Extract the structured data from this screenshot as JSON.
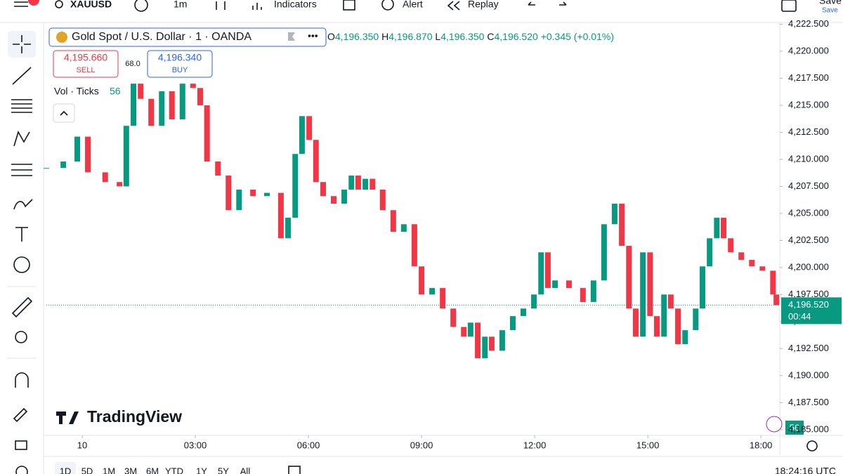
{
  "toolbar": {
    "symbol": "XAUUSD",
    "interval": "1m",
    "indicators": "Indicators",
    "alert": "Alert",
    "replay": "Replay",
    "save": "Save",
    "save_sub": "Save"
  },
  "legend": {
    "title": "Gold Spot / U.S. Dollar · 1 · OANDA",
    "ohlc": [
      "O",
      "4,196.350",
      "H",
      "4,196.870",
      "L",
      "4,196.350",
      "C",
      "4,196.520"
    ],
    "change": "+0.345 (+0.01%)"
  },
  "trade": {
    "sell_price": "4,195.660",
    "sell": "SELL",
    "spread": "68.0",
    "buy_price": "4,196.340",
    "buy": "BUY"
  },
  "volume_legend": {
    "label": "Vol · Ticks",
    "value": "56"
  },
  "watermark": "TradingView",
  "chart_data": {
    "type": "candlestick",
    "x": [
      -0.95,
      -0.5,
      -0.13,
      0.15,
      0.61,
      0.99,
      1.17,
      1.36,
      1.55,
      1.83,
      2.11,
      2.38,
      2.66,
      2.94,
      3.13,
      3.31,
      3.6,
      3.88,
      4.16,
      4.53,
      4.9,
      5.27,
      5.46,
      5.65,
      5.83,
      6.02,
      6.2,
      6.39,
      6.67,
      6.95,
      7.14,
      7.32,
      7.51,
      7.7,
      7.97,
      8.25,
      8.53,
      8.81,
      9.0,
      9.28,
      9.56,
      9.84,
      10.12,
      10.3,
      10.49,
      10.68,
      10.86,
      11.14,
      11.42,
      11.7,
      11.98,
      12.17,
      12.35,
      12.54,
      12.91,
      13.28,
      13.56,
      13.84,
      14.12,
      14.31,
      14.5,
      14.68,
      14.87,
      15.06,
      15.24,
      15.43,
      15.61,
      15.8,
      15.99,
      16.27,
      16.45,
      16.64,
      16.83,
      17.01,
      17.2,
      17.48,
      17.76,
      18.04,
      18.32,
      18.41
    ],
    "values": [
      4209.2,
      4209.8,
      4212.1,
      4208.8,
      4207.9,
      4207.5,
      4213.1,
      4217.0,
      4215.6,
      4213.1,
      4216.3,
      4213.7,
      4217.0,
      4216.6,
      4215.0,
      4209.8,
      4208.5,
      4205.3,
      4207.2,
      4206.6,
      4206.9,
      4202.7,
      4204.6,
      4210.5,
      4214.0,
      4211.8,
      4207.9,
      4206.6,
      4205.9,
      4207.2,
      4208.5,
      4207.2,
      4208.2,
      4207.2,
      4205.3,
      4203.3,
      4204.0,
      4200.1,
      4197.5,
      4198.1,
      4196.2,
      4194.5,
      4193.6,
      4194.9,
      4191.6,
      4193.6,
      4192.3,
      4194.2,
      4195.5,
      4196.2,
      4197.5,
      4201.4,
      4198.1,
      4198.8,
      4198.1,
      4196.8,
      4198.8,
      4204.0,
      4205.9,
      4202.0,
      4196.2,
      4193.6,
      4201.4,
      4195.5,
      4193.6,
      4197.5,
      4196.2,
      4192.9,
      4194.2,
      4196.2,
      4200.1,
      4202.7,
      4204.6,
      4202.7,
      4201.4,
      4200.7,
      4200.1,
      4199.7,
      4197.5,
      4196.52
    ],
    "up_color": "#089981",
    "down_color": "#f23645",
    "xlim": [
      -0.95,
      18.5
    ],
    "ylim": [
      4184.6,
      4222.4
    ],
    "xticks": [
      {
        "value": 0,
        "label": "10"
      },
      {
        "value": 3,
        "label": "03:00"
      },
      {
        "value": 6,
        "label": "06:00"
      },
      {
        "value": 9,
        "label": "09:00"
      },
      {
        "value": 12,
        "label": "12:00"
      },
      {
        "value": 15,
        "label": "15:00"
      },
      {
        "value": 18,
        "label": "18:00"
      }
    ],
    "yticks": [
      {
        "value": 4185,
        "label": "4,185.000"
      },
      {
        "value": 4187.5,
        "label": "4,187.500"
      },
      {
        "value": 4190,
        "label": "4,190.000"
      },
      {
        "value": 4192.5,
        "label": "4,192.500"
      },
      {
        "value": 4195,
        "label": "4,195.000"
      },
      {
        "value": 4197.5,
        "label": "4,197.500"
      },
      {
        "value": 4200,
        "label": "4,200.000"
      },
      {
        "value": 4202.5,
        "label": "4,202.500"
      },
      {
        "value": 4205,
        "label": "4,205.000"
      },
      {
        "value": 4207.5,
        "label": "4,207.500"
      },
      {
        "value": 4210,
        "label": "4,210.000"
      },
      {
        "value": 4212.5,
        "label": "4,212.500"
      },
      {
        "value": 4215,
        "label": "4,215.000"
      },
      {
        "value": 4217.5,
        "label": "4,217.500"
      },
      {
        "value": 4220,
        "label": "4,220.000"
      },
      {
        "value": 4222.5,
        "label": "4,222.500"
      }
    ],
    "last_price": {
      "value": 4196.52,
      "label": "4,196.520"
    },
    "countdown": "00:44",
    "last_price_color": "#089981"
  },
  "bottom_bar": {
    "ranges": [
      "1D",
      "5D",
      "1M",
      "3M",
      "6M",
      "YTD",
      "1Y",
      "5Y",
      "All"
    ],
    "clock": "18:24:16 UTC"
  }
}
